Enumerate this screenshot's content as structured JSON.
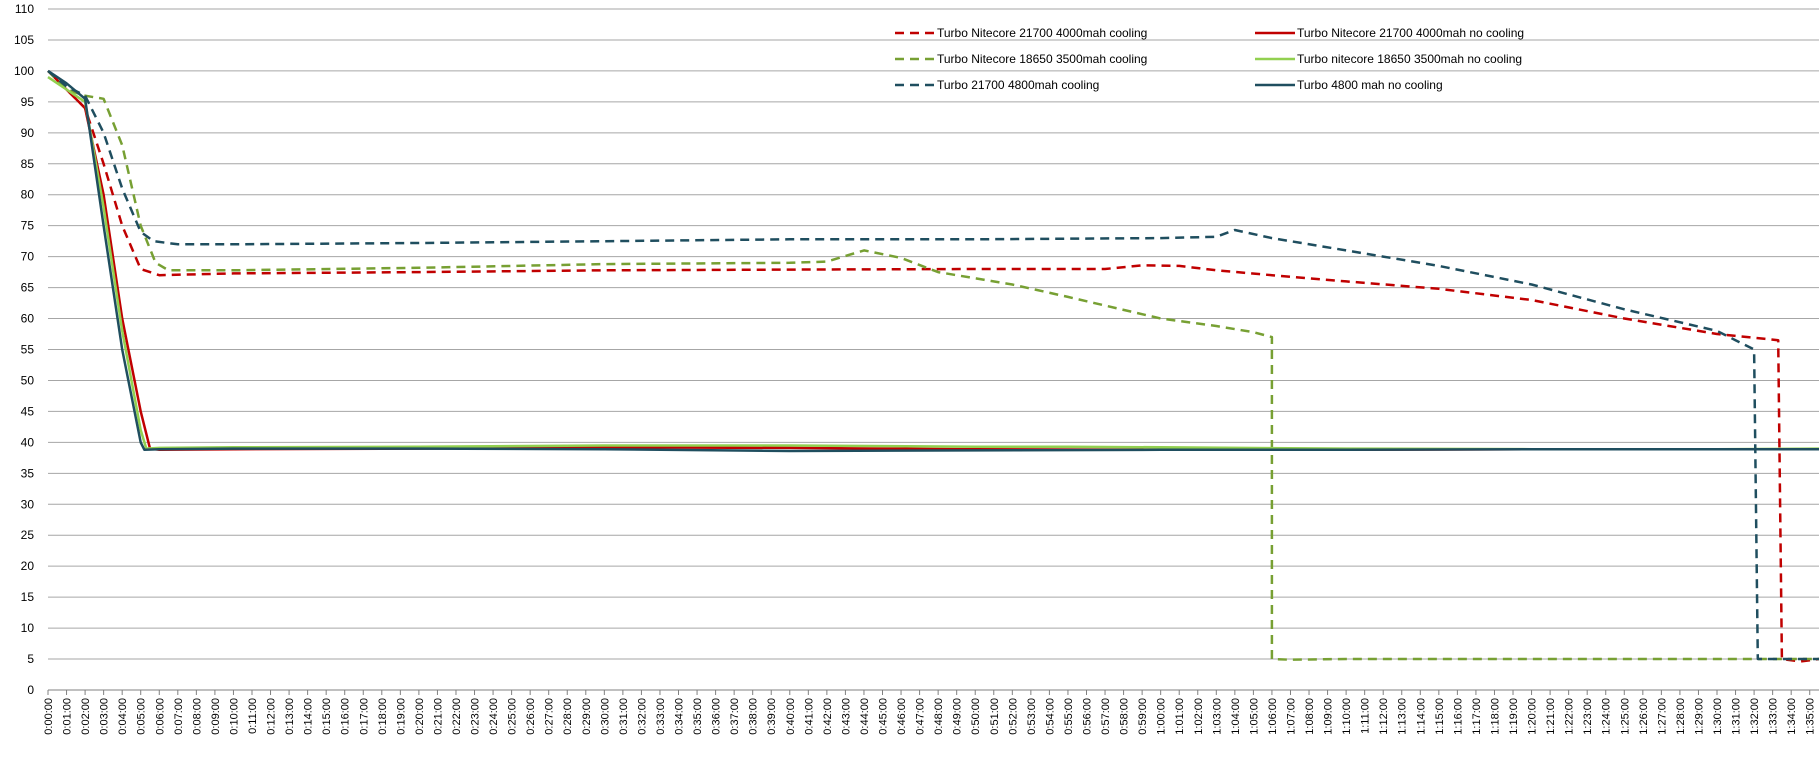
{
  "chart_data": {
    "type": "line",
    "title": "",
    "xlabel": "",
    "ylabel": "",
    "ylim": [
      0,
      110
    ],
    "yticks": [
      0,
      5,
      10,
      15,
      20,
      25,
      30,
      35,
      40,
      45,
      50,
      55,
      60,
      65,
      70,
      75,
      80,
      85,
      90,
      95,
      100,
      105,
      110
    ],
    "xlim_minutes": [
      0,
      95.5
    ],
    "x_tick_step_minutes": 1,
    "x_tick_format": "h:mm:ss",
    "grid": "horizontal",
    "legend_placement": "top-right",
    "series": [
      {
        "name": "Turbo Nitecore 21700 4000mah cooling",
        "color": "#c00000",
        "dash": "dashed",
        "points": [
          [
            0,
            100
          ],
          [
            1,
            97
          ],
          [
            2,
            94
          ],
          [
            3,
            85
          ],
          [
            4,
            75
          ],
          [
            5,
            68
          ],
          [
            6,
            67
          ],
          [
            10,
            67.3
          ],
          [
            20,
            67.5
          ],
          [
            30,
            67.8
          ],
          [
            40,
            67.9
          ],
          [
            50,
            68
          ],
          [
            57,
            68
          ],
          [
            59,
            68.6
          ],
          [
            61,
            68.5
          ],
          [
            63,
            67.8
          ],
          [
            66,
            67
          ],
          [
            70,
            66
          ],
          [
            75,
            64.8
          ],
          [
            80,
            63
          ],
          [
            85,
            60
          ],
          [
            90,
            57.5
          ],
          [
            93.3,
            56.5
          ],
          [
            93.5,
            5
          ],
          [
            94.5,
            4.6
          ],
          [
            95.5,
            5
          ]
        ]
      },
      {
        "name": "Turbo Nitecore 21700 4000mah no cooling",
        "color": "#c00000",
        "dash": "solid",
        "points": [
          [
            0,
            100
          ],
          [
            1,
            97
          ],
          [
            2,
            94
          ],
          [
            3,
            80
          ],
          [
            4,
            60
          ],
          [
            5,
            45
          ],
          [
            5.5,
            39
          ],
          [
            6,
            38.8
          ],
          [
            10,
            38.9
          ],
          [
            20,
            39
          ],
          [
            30,
            39.2
          ],
          [
            40,
            39.1
          ],
          [
            50,
            38.9
          ],
          [
            60,
            38.8
          ],
          [
            70,
            38.8
          ],
          [
            80,
            38.9
          ],
          [
            90,
            38.9
          ],
          [
            95.5,
            38.9
          ]
        ]
      },
      {
        "name": "Turbo Nitecore 18650 3500mah cooling",
        "color": "#77a033",
        "dash": "dashed",
        "points": [
          [
            0,
            100
          ],
          [
            1,
            97
          ],
          [
            2,
            96
          ],
          [
            3,
            95.5
          ],
          [
            4,
            88
          ],
          [
            5,
            75
          ],
          [
            5.8,
            69
          ],
          [
            6.5,
            67.8
          ],
          [
            10,
            67.8
          ],
          [
            20,
            68.2
          ],
          [
            30,
            68.8
          ],
          [
            40,
            69
          ],
          [
            42,
            69.2
          ],
          [
            44,
            71
          ],
          [
            46,
            69.8
          ],
          [
            48,
            67.5
          ],
          [
            52,
            65.5
          ],
          [
            55,
            63.5
          ],
          [
            60,
            60
          ],
          [
            63,
            58.8
          ],
          [
            65,
            57.8
          ],
          [
            66,
            57
          ],
          [
            66,
            5
          ],
          [
            67,
            4.9
          ],
          [
            70,
            5
          ],
          [
            80,
            5
          ],
          [
            90,
            5
          ],
          [
            95.5,
            5
          ]
        ]
      },
      {
        "name": "Turbo nitecore 18650 3500mah no cooling",
        "color": "#92d050",
        "dash": "solid",
        "points": [
          [
            0,
            99
          ],
          [
            1,
            97
          ],
          [
            2,
            95
          ],
          [
            3,
            78
          ],
          [
            4,
            58
          ],
          [
            5,
            42
          ],
          [
            5.3,
            39
          ],
          [
            6,
            39.1
          ],
          [
            10,
            39.2
          ],
          [
            20,
            39.3
          ],
          [
            30,
            39.5
          ],
          [
            40,
            39.5
          ],
          [
            50,
            39.3
          ],
          [
            55,
            39.3
          ],
          [
            60,
            39.2
          ],
          [
            70,
            39
          ],
          [
            80,
            38.9
          ],
          [
            90,
            38.9
          ],
          [
            95.5,
            39
          ]
        ]
      },
      {
        "name": "Turbo 21700 4800mah cooling",
        "color": "#1f4e5f",
        "dash": "dashed",
        "points": [
          [
            0,
            100
          ],
          [
            1,
            97.5
          ],
          [
            2,
            96
          ],
          [
            3,
            90
          ],
          [
            4,
            81
          ],
          [
            5,
            74
          ],
          [
            5.7,
            72.5
          ],
          [
            7,
            72
          ],
          [
            10,
            72
          ],
          [
            20,
            72.2
          ],
          [
            30,
            72.5
          ],
          [
            40,
            72.8
          ],
          [
            50,
            72.8
          ],
          [
            60,
            73
          ],
          [
            63,
            73.2
          ],
          [
            64,
            74.3
          ],
          [
            66,
            73
          ],
          [
            70,
            71
          ],
          [
            75,
            68.5
          ],
          [
            80,
            65.5
          ],
          [
            85,
            61.5
          ],
          [
            90,
            58
          ],
          [
            91,
            56.5
          ],
          [
            92,
            55
          ],
          [
            92.2,
            5
          ],
          [
            93,
            5
          ],
          [
            95.5,
            5
          ]
        ]
      },
      {
        "name": "Turbo 4800 mah no cooling",
        "color": "#1f4e5f",
        "dash": "solid",
        "points": [
          [
            0,
            100
          ],
          [
            1,
            98
          ],
          [
            2,
            95.5
          ],
          [
            3,
            75
          ],
          [
            4,
            55
          ],
          [
            5,
            40
          ],
          [
            5.2,
            38.8
          ],
          [
            6,
            38.9
          ],
          [
            10,
            39
          ],
          [
            20,
            39
          ],
          [
            30,
            38.9
          ],
          [
            40,
            38.6
          ],
          [
            50,
            38.7
          ],
          [
            60,
            38.8
          ],
          [
            70,
            38.8
          ],
          [
            80,
            38.9
          ],
          [
            90,
            38.9
          ],
          [
            95.5,
            38.9
          ]
        ]
      }
    ]
  }
}
